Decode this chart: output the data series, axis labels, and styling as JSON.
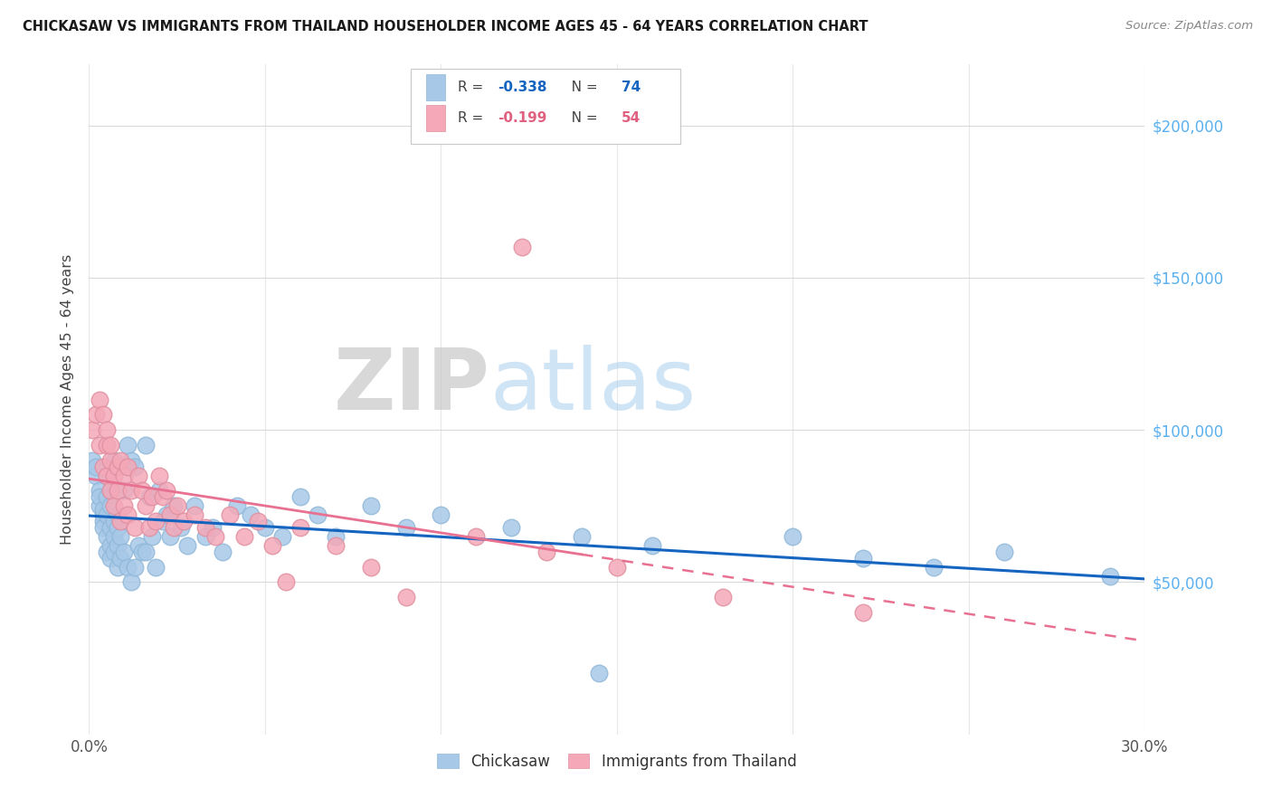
{
  "title": "CHICKASAW VS IMMIGRANTS FROM THAILAND HOUSEHOLDER INCOME AGES 45 - 64 YEARS CORRELATION CHART",
  "source": "Source: ZipAtlas.com",
  "ylabel": "Householder Income Ages 45 - 64 years",
  "yaxis_labels": [
    "$50,000",
    "$100,000",
    "$150,000",
    "$200,000"
  ],
  "yaxis_values": [
    50000,
    100000,
    150000,
    200000
  ],
  "ylim": [
    0,
    220000
  ],
  "xlim": [
    0.0,
    0.3
  ],
  "watermark_zip": "ZIP",
  "watermark_atlas": "atlas",
  "chickasaw_color": "#a8c8e8",
  "thailand_color": "#f4a8b8",
  "trendline_chickasaw_color": "#1565c0",
  "trendline_thailand_color": "#e87090",
  "legend_chickasaw_R": "-0.338",
  "legend_chickasaw_N": "74",
  "legend_thailand_R": "-0.199",
  "legend_thailand_N": "54",
  "chickasaw_x": [
    0.001,
    0.002,
    0.002,
    0.003,
    0.003,
    0.003,
    0.004,
    0.004,
    0.004,
    0.004,
    0.005,
    0.005,
    0.005,
    0.005,
    0.005,
    0.006,
    0.006,
    0.006,
    0.006,
    0.006,
    0.007,
    0.007,
    0.007,
    0.007,
    0.008,
    0.008,
    0.008,
    0.008,
    0.009,
    0.009,
    0.01,
    0.01,
    0.011,
    0.011,
    0.012,
    0.012,
    0.013,
    0.013,
    0.014,
    0.015,
    0.016,
    0.016,
    0.017,
    0.018,
    0.019,
    0.02,
    0.021,
    0.022,
    0.023,
    0.024,
    0.026,
    0.028,
    0.03,
    0.033,
    0.035,
    0.038,
    0.042,
    0.046,
    0.05,
    0.055,
    0.06,
    0.065,
    0.07,
    0.08,
    0.09,
    0.1,
    0.12,
    0.14,
    0.16,
    0.2,
    0.22,
    0.24,
    0.26,
    0.29
  ],
  "chickasaw_y": [
    90000,
    85000,
    88000,
    80000,
    75000,
    78000,
    72000,
    70000,
    74000,
    68000,
    85000,
    78000,
    72000,
    65000,
    60000,
    80000,
    75000,
    68000,
    62000,
    58000,
    90000,
    70000,
    65000,
    60000,
    72000,
    68000,
    62000,
    55000,
    65000,
    58000,
    80000,
    60000,
    95000,
    55000,
    90000,
    50000,
    88000,
    55000,
    62000,
    60000,
    95000,
    60000,
    78000,
    65000,
    55000,
    80000,
    70000,
    72000,
    65000,
    75000,
    68000,
    62000,
    75000,
    65000,
    68000,
    60000,
    75000,
    72000,
    68000,
    65000,
    78000,
    72000,
    65000,
    75000,
    68000,
    72000,
    68000,
    65000,
    62000,
    65000,
    58000,
    55000,
    60000,
    52000
  ],
  "thailand_x": [
    0.001,
    0.002,
    0.003,
    0.003,
    0.004,
    0.004,
    0.005,
    0.005,
    0.005,
    0.006,
    0.006,
    0.006,
    0.007,
    0.007,
    0.008,
    0.008,
    0.009,
    0.009,
    0.01,
    0.01,
    0.011,
    0.011,
    0.012,
    0.013,
    0.014,
    0.015,
    0.016,
    0.017,
    0.018,
    0.019,
    0.02,
    0.021,
    0.022,
    0.023,
    0.024,
    0.025,
    0.027,
    0.03,
    0.033,
    0.036,
    0.04,
    0.044,
    0.048,
    0.052,
    0.056,
    0.06,
    0.07,
    0.08,
    0.09,
    0.11,
    0.13,
    0.15,
    0.18,
    0.22
  ],
  "thailand_y": [
    100000,
    105000,
    95000,
    110000,
    88000,
    105000,
    95000,
    85000,
    100000,
    90000,
    80000,
    95000,
    85000,
    75000,
    88000,
    80000,
    90000,
    70000,
    85000,
    75000,
    88000,
    72000,
    80000,
    68000,
    85000,
    80000,
    75000,
    68000,
    78000,
    70000,
    85000,
    78000,
    80000,
    72000,
    68000,
    75000,
    70000,
    72000,
    68000,
    65000,
    72000,
    65000,
    70000,
    62000,
    50000,
    68000,
    62000,
    55000,
    45000,
    65000,
    60000,
    55000,
    45000,
    40000
  ]
}
